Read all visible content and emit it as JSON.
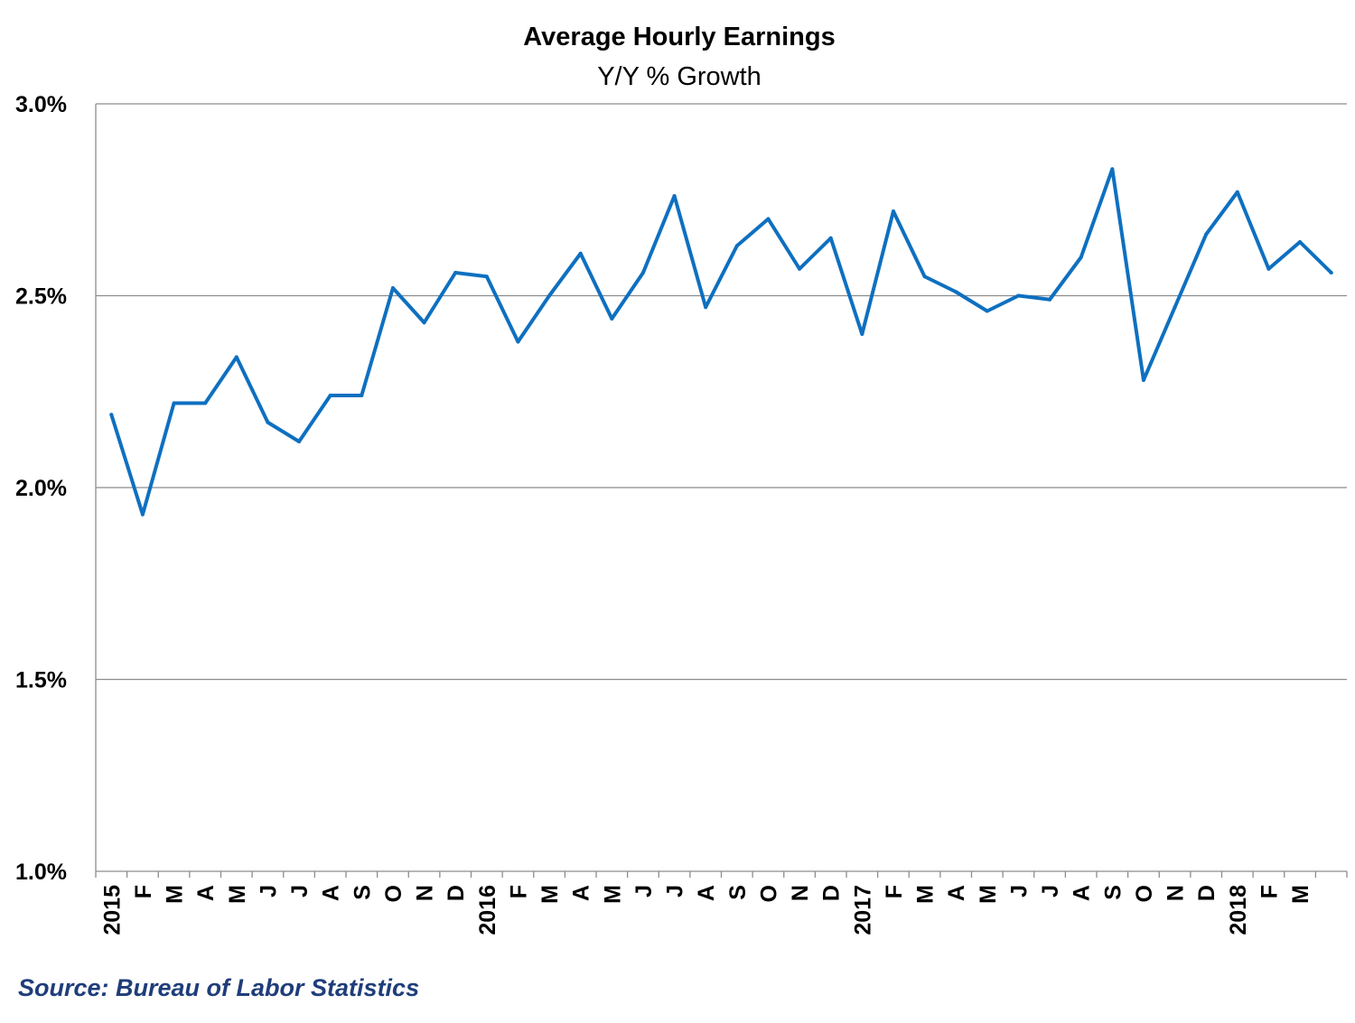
{
  "chart_data": {
    "type": "line",
    "title": "Average Hourly Earnings",
    "subtitle": "Y/Y % Growth",
    "source": "Source: Bureau of Labor Statistics",
    "ylim": [
      1.0,
      3.0
    ],
    "yticks": [
      "3.0%",
      "2.5%",
      "2.0%",
      "1.5%",
      "1.0%"
    ],
    "ytick_values": [
      3.0,
      2.5,
      2.0,
      1.5,
      1.0
    ],
    "grid": true,
    "line_color": "#0e70c0",
    "categories": [
      "2015",
      "F",
      "M",
      "A",
      "M",
      "J",
      "J",
      "A",
      "S",
      "O",
      "N",
      "D",
      "2016",
      "F",
      "M",
      "A",
      "M",
      "J",
      "J",
      "A",
      "S",
      "O",
      "N",
      "D",
      "2017",
      "F",
      "M",
      "A",
      "M",
      "J",
      "J",
      "A",
      "S",
      "O",
      "N",
      "D",
      "2018",
      "F",
      "M",
      ""
    ],
    "series": [
      {
        "values": [
          2.19,
          1.93,
          2.22,
          2.22,
          2.34,
          2.17,
          2.12,
          2.24,
          2.24,
          2.52,
          2.43,
          2.56,
          2.55,
          2.38,
          2.5,
          2.61,
          2.44,
          2.56,
          2.76,
          2.47,
          2.63,
          2.7,
          2.57,
          2.65,
          2.4,
          2.72,
          2.55,
          2.51,
          2.46,
          2.5,
          2.49,
          2.6,
          2.83,
          2.28,
          2.47,
          2.66,
          2.77,
          2.57,
          2.64,
          2.56
        ]
      }
    ]
  }
}
